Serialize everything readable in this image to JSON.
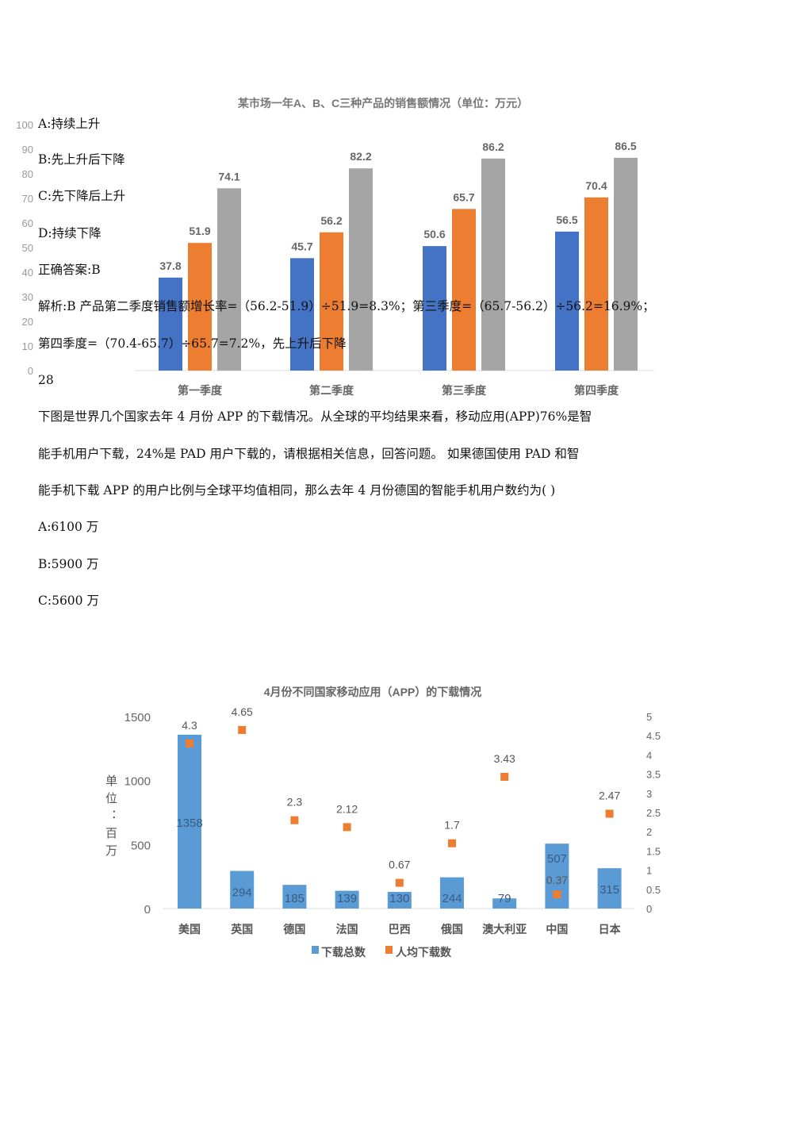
{
  "lines": [
    "A:持续上升",
    "B:先上升后下降",
    "C:先下降后上升",
    "D:持续下降",
    "正确答案:B",
    "解析:B 产品第二季度销售额增长率=（56.2-51.9）÷51.9=8.3%；第三季度=（65.7-56.2）÷56.2=16.9%；",
    "第四季度=（70.4-65.7）÷65.7=7.2%，先上升后下降",
    "28",
    "下图是世界几个国家去年 4 月份 APP 的下载情况。从全球的平均结果来看，移动应用(APP)76%是智",
    "能手机用户下载，24%是 PAD 用户下载的，请根据相关信息，回答问题。 如果德国使用 PAD 和智",
    "能手机下载 APP 的用户比例与全球平均值相同，那么去年 4 月份德国的智能手机用户数约为( )",
    "A:6100 万",
    "B:5900 万",
    "C:5600 万"
  ],
  "chart_data": [
    {
      "type": "bar",
      "title": "某市场一年A、B、C三种产品的销售额情况（单位：万元）",
      "categories": [
        "第一季度",
        "第二季度",
        "第三季度",
        "第四季度"
      ],
      "series": [
        {
          "values": [
            37.8,
            45.7,
            50.6,
            56.5
          ],
          "color": "#4472c4"
        },
        {
          "values": [
            51.9,
            56.2,
            65.7,
            70.4
          ],
          "color": "#ed7d31"
        },
        {
          "values": [
            74.1,
            82.2,
            86.2,
            86.5
          ],
          "color": "#a5a5a5"
        }
      ],
      "ylim": [
        0,
        100
      ],
      "yticks": [
        0,
        10,
        20,
        30,
        40,
        50,
        60,
        70,
        80,
        90,
        100
      ],
      "grid": false
    },
    {
      "type": "bar+scatter",
      "title": "4月份不同国家移动应用（APP）的下载情况",
      "ylabel": "单位：百万",
      "categories": [
        "美国",
        "英国",
        "德国",
        "法国",
        "巴西",
        "俄国",
        "澳大利亚",
        "中国",
        "日本"
      ],
      "series": [
        {
          "name": "下载总数",
          "type": "bar",
          "axis": "left",
          "values": [
            1358,
            294,
            185,
            139,
            130,
            244,
            79,
            507,
            315
          ],
          "color": "#5b9bd5"
        },
        {
          "name": "人均下载数",
          "type": "scatter",
          "axis": "right",
          "values": [
            4.3,
            4.65,
            2.3,
            2.12,
            0.67,
            1.7,
            3.43,
            0.37,
            2.47
          ],
          "color": "#ed7d31"
        }
      ],
      "ylim": [
        0,
        1500
      ],
      "yticks": [
        0,
        500,
        1000,
        1500
      ],
      "y2lim": [
        0,
        5
      ],
      "y2ticks": [
        "0",
        "0.5",
        "1",
        "1.5",
        "2",
        "2.5",
        "3",
        "3.5",
        "4",
        "4.5",
        "5"
      ],
      "legend": "bottom"
    }
  ]
}
